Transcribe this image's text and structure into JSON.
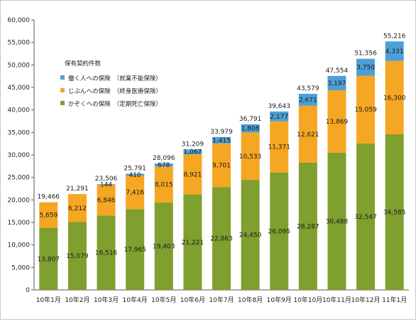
{
  "chart_data": {
    "type": "bar",
    "stacked": true,
    "categories": [
      "10年1月",
      "10年2月",
      "10年3月",
      "10年4月",
      "10年5月",
      "10年6月",
      "10年7月",
      "10年8月",
      "10年9月",
      "10年10月",
      "10年11月",
      "10年12月",
      "11年1月"
    ],
    "series": [
      {
        "name": "かぞくへの保険　（定期死亡保険）",
        "color": "#7f9f2f",
        "values": [
          13807,
          15079,
          16516,
          17965,
          19403,
          21221,
          22863,
          24450,
          26095,
          28287,
          30488,
          32547,
          34585
        ]
      },
      {
        "name": "じぶんへの保険　（終身医療保険）",
        "color": "#f5a623",
        "values": [
          5659,
          6212,
          6846,
          7416,
          8015,
          8921,
          9701,
          10533,
          11371,
          12621,
          13869,
          15059,
          16300
        ]
      },
      {
        "name": "働く人への保険　（就業不能保険）",
        "color": "#4f9fd6",
        "values": [
          0,
          0,
          144,
          410,
          678,
          1067,
          1415,
          1808,
          2177,
          2671,
          3197,
          3750,
          4331
        ]
      }
    ],
    "value_labels": [
      [
        "13,807",
        "15,079",
        "16,516",
        "17,965",
        "19,403",
        "21,221",
        "22,863",
        "24,450",
        "26,095",
        "28,287",
        "30,488",
        "32,547",
        "34,585"
      ],
      [
        "5,659",
        "6,212",
        "6,846",
        "7,416",
        "8,015",
        "8,921",
        "9,701",
        "10,533",
        "11,371",
        "12,621",
        "13,869",
        "15,059",
        "16,300"
      ],
      [
        "",
        "",
        "144",
        "410",
        "678",
        "1,067",
        "1,415",
        "1,808",
        "2,177",
        "2,671",
        "3,197",
        "3,750",
        "4,331"
      ]
    ],
    "totals": [
      19466,
      21291,
      23506,
      25791,
      28096,
      31209,
      33979,
      36791,
      39643,
      43579,
      47554,
      51356,
      55216
    ],
    "total_labels": [
      "19,466",
      "21,291",
      "23,506",
      "25,791",
      "28,096",
      "31,209",
      "33,979",
      "36,791",
      "39,643",
      "43,579",
      "47,554",
      "51,356",
      "55,216"
    ],
    "ylim": [
      0,
      60000
    ],
    "yticks": [
      "0",
      "5,000",
      "10,000",
      "15,000",
      "20,000",
      "25,000",
      "30,000",
      "35,000",
      "40,000",
      "45,000",
      "50,000",
      "55,000",
      "60,000"
    ],
    "ytick_values": [
      0,
      5000,
      10000,
      15000,
      20000,
      25000,
      30000,
      35000,
      40000,
      45000,
      50000,
      55000,
      60000
    ],
    "legend": {
      "title": "保有契約件数",
      "placement": "top-left"
    },
    "grid": false
  }
}
